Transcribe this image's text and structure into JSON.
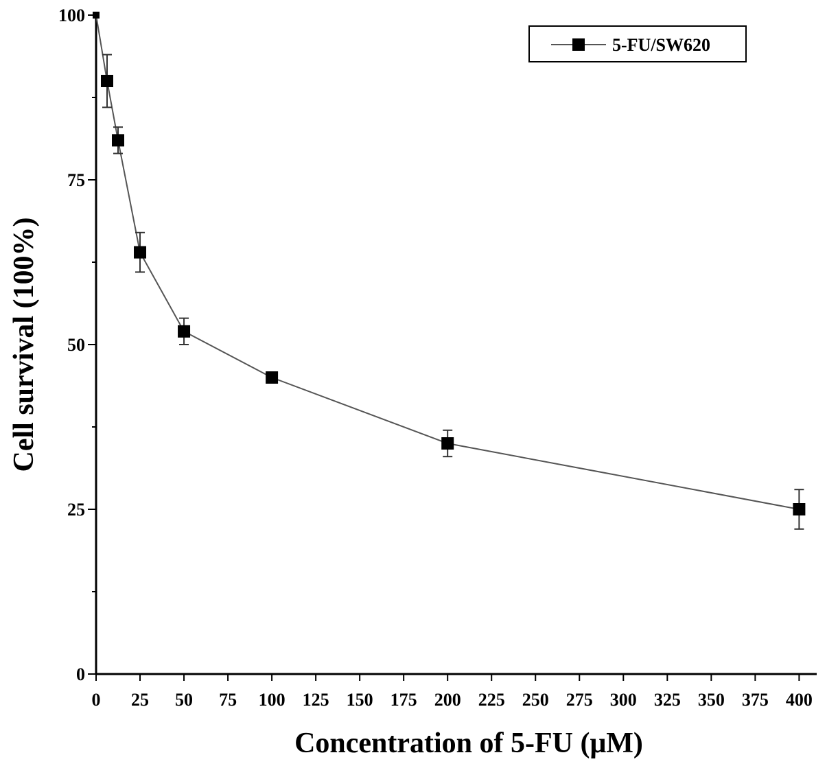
{
  "chart_data": {
    "type": "line",
    "xlabel": "Concentration of 5-FU (μM)",
    "ylabel": "Cell survival (100%)",
    "x_ticks": [
      0,
      25,
      50,
      75,
      100,
      125,
      150,
      175,
      200,
      225,
      250,
      275,
      300,
      325,
      350,
      375,
      400
    ],
    "y_ticks": [
      0,
      25,
      50,
      75,
      100
    ],
    "xlim": [
      0,
      410
    ],
    "ylim": [
      0,
      100
    ],
    "legend_position": "top-right",
    "series": [
      {
        "name": "5-FU/SW620",
        "color": "#000000",
        "line_color": "#555555",
        "marker": "square",
        "x": [
          0,
          6.25,
          12.5,
          25,
          50,
          100,
          200,
          400
        ],
        "y": [
          100,
          90,
          81,
          64,
          52,
          45,
          35,
          25
        ],
        "err": [
          0,
          4,
          2,
          3,
          2,
          0.5,
          2,
          3
        ]
      }
    ]
  }
}
